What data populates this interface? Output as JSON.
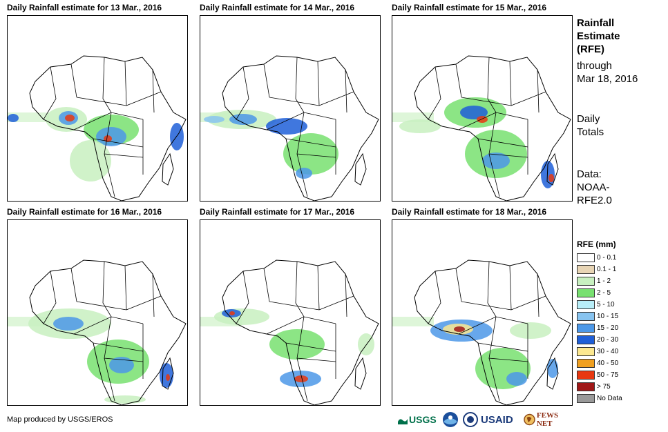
{
  "panels": [
    {
      "title": "Daily Rainfall estimate for 13 Mar., 2016"
    },
    {
      "title": "Daily Rainfall estimate for 14 Mar., 2016"
    },
    {
      "title": "Daily Rainfall estimate for 15 Mar., 2016"
    },
    {
      "title": "Daily Rainfall estimate for 16 Mar., 2016"
    },
    {
      "title": "Daily Rainfall estimate for 17 Mar., 2016"
    },
    {
      "title": "Daily Rainfall estimate for 18 Mar., 2016"
    }
  ],
  "side": {
    "title_line1": "Rainfall",
    "title_line2": "Estimate",
    "title_line3": "(RFE)",
    "through_line1": "through",
    "through_line2": "Mar 18, 2016",
    "totals_line1": "Daily",
    "totals_line2": "Totals",
    "data_line1": "Data:",
    "data_line2": "NOAA-",
    "data_line3": "RFE2.0"
  },
  "legend": {
    "title": "RFE (mm)",
    "items": [
      {
        "label": "0 - 0.1",
        "color": "#ffffff"
      },
      {
        "label": "0.1 - 1",
        "color": "#e8d5b5"
      },
      {
        "label": "1 - 2",
        "color": "#c8f0c0"
      },
      {
        "label": "2 - 5",
        "color": "#78e070"
      },
      {
        "label": "5 - 10",
        "color": "#b8eef8"
      },
      {
        "label": "10 - 15",
        "color": "#88c4f0"
      },
      {
        "label": "15 - 20",
        "color": "#4c98e8"
      },
      {
        "label": "20 - 30",
        "color": "#1f5fd8"
      },
      {
        "label": "30 - 40",
        "color": "#fce890"
      },
      {
        "label": "40 - 50",
        "color": "#f0a020"
      },
      {
        "label": "50 - 75",
        "color": "#e83810"
      },
      {
        "label": "> 75",
        "color": "#a01818"
      },
      {
        "label": "No Data",
        "color": "#999999"
      }
    ]
  },
  "credit": "Map produced by USGS/EROS",
  "logos": {
    "usgs": "USGS",
    "usaid": "USAID",
    "fewsnet": "FEWS NET"
  }
}
